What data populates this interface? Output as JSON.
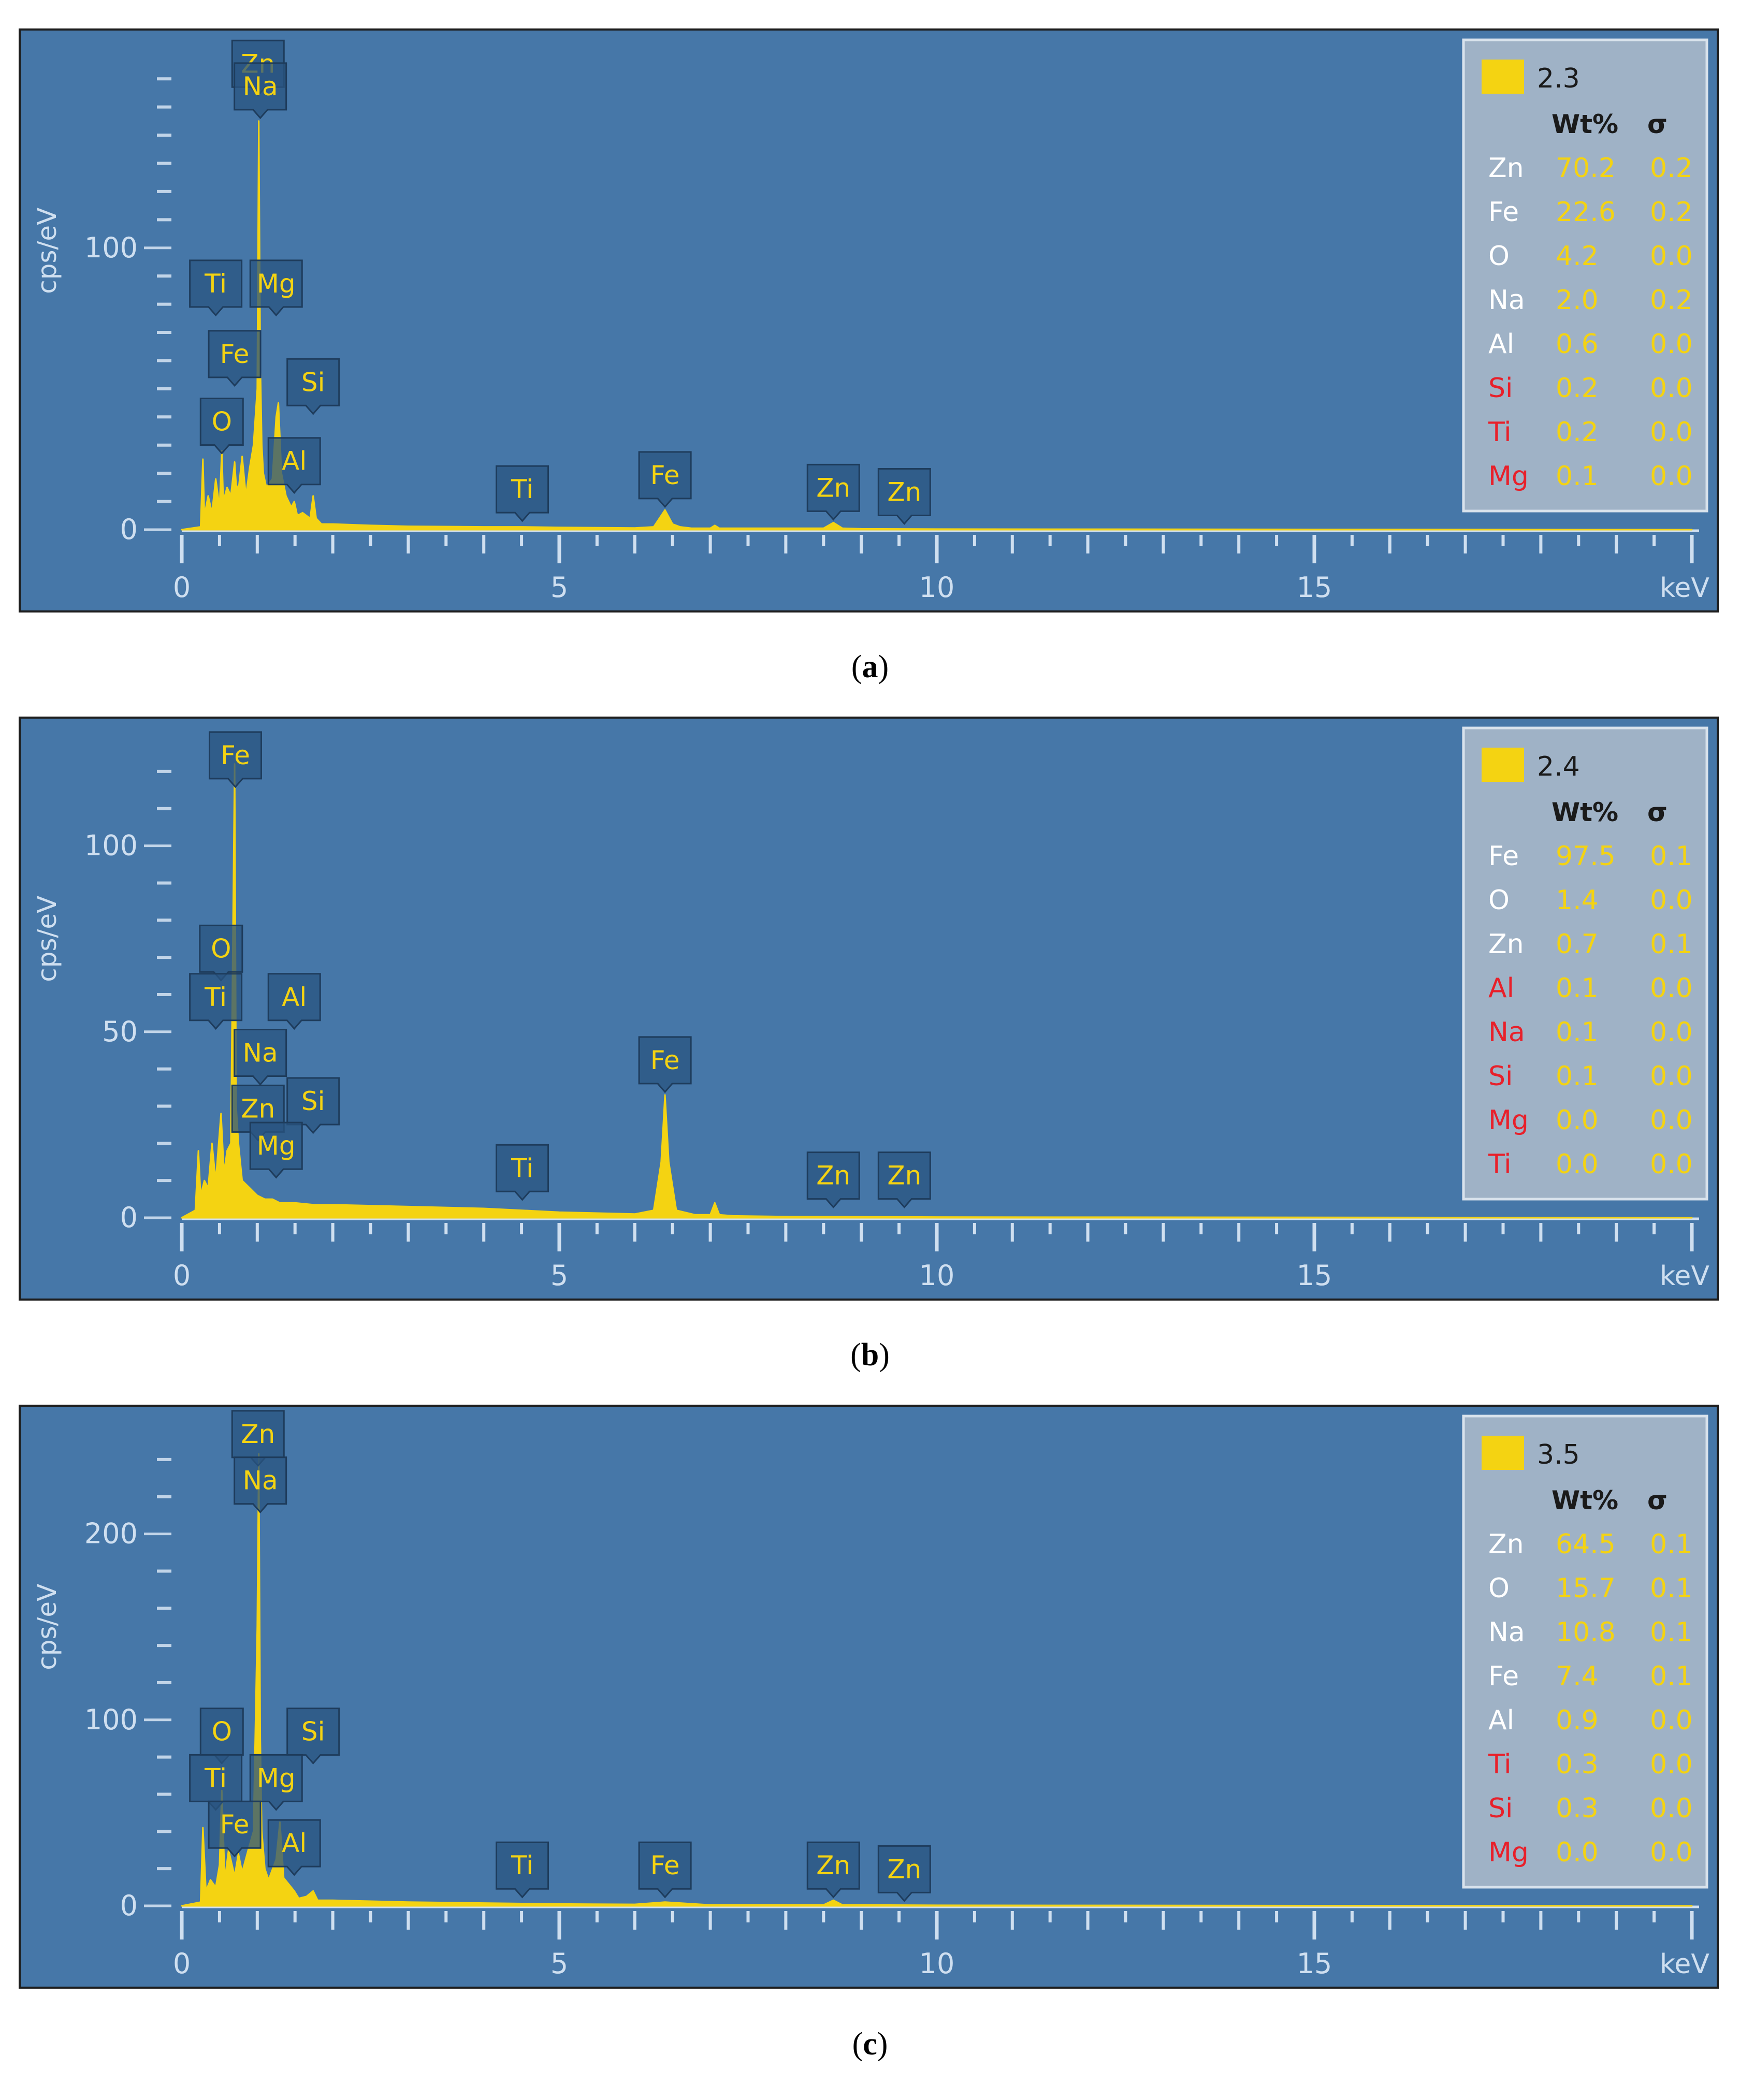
{
  "panels": [
    {
      "caption": "a",
      "chart_data": {
        "type": "line",
        "title": "",
        "xlabel": "keV",
        "ylabel": "cps/eV",
        "xlim": [
          0,
          20
        ],
        "ylim": [
          0,
          165
        ],
        "y_major_ticks": [
          0,
          100
        ],
        "x_major_ticks": [
          0,
          5,
          10,
          15
        ],
        "series": [
          {
            "name": "2.3",
            "color": "#f4d312",
            "x": [
              0.0,
              0.25,
              0.28,
              0.3,
              0.35,
              0.4,
              0.45,
              0.5,
              0.53,
              0.55,
              0.6,
              0.65,
              0.7,
              0.72,
              0.75,
              0.8,
              0.85,
              0.9,
              0.95,
              1.0,
              1.02,
              1.04,
              1.06,
              1.08,
              1.12,
              1.2,
              1.25,
              1.28,
              1.32,
              1.38,
              1.45,
              1.49,
              1.53,
              1.6,
              1.7,
              1.74,
              1.78,
              1.85,
              2.0,
              2.5,
              3.0,
              4.0,
              4.5,
              5.0,
              6.0,
              6.25,
              6.4,
              6.5,
              6.6,
              6.75,
              7.0,
              7.06,
              7.12,
              8.0,
              8.5,
              8.63,
              8.75,
              9.0,
              10.0,
              20.0
            ],
            "y": [
              0,
              1,
              25,
              5,
              12,
              6,
              18,
              8,
              28,
              10,
              15,
              12,
              24,
              16,
              14,
              26,
              12,
              22,
              30,
              50,
              145,
              60,
              30,
              20,
              15,
              18,
              40,
              45,
              20,
              12,
              8,
              10,
              5,
              6,
              4,
              12,
              4,
              2,
              2,
              1.5,
              1.2,
              1,
              1,
              0.8,
              0.6,
              1,
              7,
              2,
              1,
              0.5,
              0.5,
              1.5,
              0.5,
              0.5,
              0.5,
              2.5,
              0.5,
              0.3,
              0.2,
              0
            ]
          }
        ],
        "peak_labels": [
          {
            "text": "Zn",
            "x": 1.01,
            "y": 153
          },
          {
            "text": "Na",
            "x": 1.04,
            "y": 145
          },
          {
            "text": "Ti",
            "x": 0.45,
            "y": 75
          },
          {
            "text": "Mg",
            "x": 1.25,
            "y": 75
          },
          {
            "text": "Fe",
            "x": 0.7,
            "y": 50
          },
          {
            "text": "Si",
            "x": 1.74,
            "y": 40
          },
          {
            "text": "O",
            "x": 0.53,
            "y": 26
          },
          {
            "text": "Al",
            "x": 1.49,
            "y": 12
          },
          {
            "text": "Ti",
            "x": 4.51,
            "y": 2
          },
          {
            "text": "Fe",
            "x": 6.4,
            "y": 7
          },
          {
            "text": "Zn",
            "x": 8.63,
            "y": 2.5
          },
          {
            "text": "Zn",
            "x": 9.57,
            "y": 1
          }
        ],
        "legend": {
          "label": "2.3",
          "header_wt": "Wt%",
          "header_sigma": "σ",
          "rows": [
            {
              "el": "Zn",
              "wt": "70.2",
              "sigma": "0.2",
              "el_color": "#ffffff"
            },
            {
              "el": "Fe",
              "wt": "22.6",
              "sigma": "0.2",
              "el_color": "#ffffff"
            },
            {
              "el": "O",
              "wt": "4.2",
              "sigma": "0.0",
              "el_color": "#ffffff"
            },
            {
              "el": "Na",
              "wt": "2.0",
              "sigma": "0.2",
              "el_color": "#ffffff"
            },
            {
              "el": "Al",
              "wt": "0.6",
              "sigma": "0.0",
              "el_color": "#ffffff"
            },
            {
              "el": "Si",
              "wt": "0.2",
              "sigma": "0.0",
              "el_color": "#e8202a"
            },
            {
              "el": "Ti",
              "wt": "0.2",
              "sigma": "0.0",
              "el_color": "#e8202a"
            },
            {
              "el": "Mg",
              "wt": "0.1",
              "sigma": "0.0",
              "el_color": "#e8202a"
            }
          ]
        }
      }
    },
    {
      "caption": "b",
      "chart_data": {
        "type": "line",
        "title": "",
        "xlabel": "keV",
        "ylabel": "cps/eV",
        "xlim": [
          0,
          20
        ],
        "ylim": [
          0,
          125
        ],
        "y_major_ticks": [
          0,
          50,
          100
        ],
        "x_major_ticks": [
          0,
          5,
          10,
          15
        ],
        "series": [
          {
            "name": "2.4",
            "color": "#f4d312",
            "x": [
              0.0,
              0.18,
              0.22,
              0.25,
              0.3,
              0.35,
              0.4,
              0.45,
              0.52,
              0.56,
              0.6,
              0.65,
              0.7,
              0.72,
              0.75,
              0.8,
              0.9,
              1.0,
              1.1,
              1.2,
              1.3,
              1.5,
              1.75,
              2.0,
              3.0,
              4.0,
              5.0,
              6.0,
              6.25,
              6.35,
              6.4,
              6.45,
              6.55,
              6.8,
              7.0,
              7.06,
              7.12,
              7.3,
              8.0,
              10.0,
              20.0
            ],
            "y": [
              0,
              2,
              18,
              6,
              10,
              8,
              20,
              10,
              28,
              12,
              18,
              20,
              122,
              30,
              20,
              10,
              8,
              6,
              5,
              5,
              4,
              4,
              3.5,
              3.5,
              3,
              2.5,
              1.5,
              1,
              2,
              15,
              33,
              15,
              2,
              0.8,
              0.8,
              4,
              0.8,
              0.5,
              0.3,
              0.2,
              0
            ]
          }
        ],
        "peak_labels": [
          {
            "text": "Fe",
            "x": 0.71,
            "y": 115
          },
          {
            "text": "O",
            "x": 0.52,
            "y": 63
          },
          {
            "text": "Ti",
            "x": 0.45,
            "y": 50
          },
          {
            "text": "Al",
            "x": 1.49,
            "y": 50
          },
          {
            "text": "Na",
            "x": 1.04,
            "y": 35
          },
          {
            "text": "Zn",
            "x": 1.01,
            "y": 20
          },
          {
            "text": "Si",
            "x": 1.74,
            "y": 22
          },
          {
            "text": "Mg",
            "x": 1.25,
            "y": 10
          },
          {
            "text": "Ti",
            "x": 4.51,
            "y": 4
          },
          {
            "text": "Fe",
            "x": 6.4,
            "y": 33
          },
          {
            "text": "Zn",
            "x": 8.63,
            "y": 2
          },
          {
            "text": "Zn",
            "x": 9.57,
            "y": 2
          }
        ],
        "legend": {
          "label": "2.4",
          "header_wt": "Wt%",
          "header_sigma": "σ",
          "rows": [
            {
              "el": "Fe",
              "wt": "97.5",
              "sigma": "0.1",
              "el_color": "#ffffff"
            },
            {
              "el": "O",
              "wt": "1.4",
              "sigma": "0.0",
              "el_color": "#ffffff"
            },
            {
              "el": "Zn",
              "wt": "0.7",
              "sigma": "0.1",
              "el_color": "#ffffff"
            },
            {
              "el": "Al",
              "wt": "0.1",
              "sigma": "0.0",
              "el_color": "#e8202a"
            },
            {
              "el": "Na",
              "wt": "0.1",
              "sigma": "0.0",
              "el_color": "#e8202a"
            },
            {
              "el": "Si",
              "wt": "0.1",
              "sigma": "0.0",
              "el_color": "#e8202a"
            },
            {
              "el": "Mg",
              "wt": "0.0",
              "sigma": "0.0",
              "el_color": "#e8202a"
            },
            {
              "el": "Ti",
              "wt": "0.0",
              "sigma": "0.0",
              "el_color": "#e8202a"
            }
          ]
        }
      }
    },
    {
      "caption": "c",
      "chart_data": {
        "type": "line",
        "title": "",
        "xlabel": "keV",
        "ylabel": "cps/eV",
        "xlim": [
          0,
          20
        ],
        "ylim": [
          0,
          250
        ],
        "y_major_ticks": [
          0,
          100,
          200
        ],
        "x_major_ticks": [
          0,
          5,
          10,
          15
        ],
        "series": [
          {
            "name": "3.5",
            "color": "#f4d312",
            "x": [
              0.0,
              0.25,
              0.28,
              0.32,
              0.38,
              0.45,
              0.5,
              0.53,
              0.57,
              0.62,
              0.7,
              0.75,
              0.8,
              0.88,
              0.95,
              1.0,
              1.02,
              1.04,
              1.06,
              1.1,
              1.15,
              1.25,
              1.3,
              1.35,
              1.49,
              1.55,
              1.65,
              1.74,
              1.8,
              2.0,
              3.0,
              4.0,
              5.0,
              6.0,
              6.4,
              7.0,
              8.5,
              8.63,
              8.75,
              10.0,
              20.0
            ],
            "y": [
              0,
              2,
              42,
              8,
              14,
              10,
              22,
              62,
              14,
              30,
              16,
              28,
              18,
              30,
              40,
              150,
              243,
              90,
              40,
              20,
              14,
              25,
              45,
              15,
              8,
              4,
              5,
              8,
              3,
              3,
              2,
              1.5,
              1,
              0.8,
              2,
              0.5,
              0.5,
              3,
              0.5,
              0.3,
              0
            ]
          }
        ],
        "peak_labels": [
          {
            "text": "Zn",
            "x": 1.01,
            "y": 235
          },
          {
            "text": "Na",
            "x": 1.04,
            "y": 210
          },
          {
            "text": "O",
            "x": 0.53,
            "y": 75
          },
          {
            "text": "Si",
            "x": 1.74,
            "y": 75
          },
          {
            "text": "Ti",
            "x": 0.45,
            "y": 50
          },
          {
            "text": "Mg",
            "x": 1.25,
            "y": 50
          },
          {
            "text": "Fe",
            "x": 0.7,
            "y": 25
          },
          {
            "text": "Al",
            "x": 1.49,
            "y": 15
          },
          {
            "text": "Ti",
            "x": 4.51,
            "y": 3
          },
          {
            "text": "Fe",
            "x": 6.4,
            "y": 3
          },
          {
            "text": "Zn",
            "x": 8.63,
            "y": 3
          },
          {
            "text": "Zn",
            "x": 9.57,
            "y": 1
          }
        ],
        "legend": {
          "label": "3.5",
          "header_wt": "Wt%",
          "header_sigma": "σ",
          "rows": [
            {
              "el": "Zn",
              "wt": "64.5",
              "sigma": "0.1",
              "el_color": "#ffffff"
            },
            {
              "el": "O",
              "wt": "15.7",
              "sigma": "0.1",
              "el_color": "#ffffff"
            },
            {
              "el": "Na",
              "wt": "10.8",
              "sigma": "0.1",
              "el_color": "#ffffff"
            },
            {
              "el": "Fe",
              "wt": "7.4",
              "sigma": "0.1",
              "el_color": "#ffffff"
            },
            {
              "el": "Al",
              "wt": "0.9",
              "sigma": "0.0",
              "el_color": "#ffffff"
            },
            {
              "el": "Ti",
              "wt": "0.3",
              "sigma": "0.0",
              "el_color": "#e8202a"
            },
            {
              "el": "Si",
              "wt": "0.3",
              "sigma": "0.0",
              "el_color": "#e8202a"
            },
            {
              "el": "Mg",
              "wt": "0.0",
              "sigma": "0.0",
              "el_color": "#e8202a"
            }
          ]
        }
      }
    }
  ],
  "colors": {
    "background": "#4677a8",
    "spectrum": "#f4d312",
    "axis": "#cfdff0",
    "label_box": "#2a5480",
    "legend_bg": "#9fb2c6"
  }
}
